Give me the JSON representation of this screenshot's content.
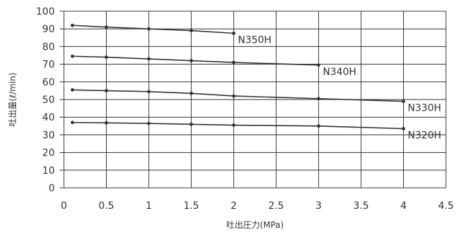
{
  "chart_data": {
    "type": "line",
    "xlabel": "吐出圧力(MPa)",
    "ylabel": "吐出量(ℓ/min)",
    "xlim": [
      0,
      4.5
    ],
    "ylim": [
      0,
      100
    ],
    "x_ticks": [
      "0",
      "0.5",
      "1",
      "1.5",
      "2",
      "2.5",
      "3",
      "3.5",
      "4",
      "4.5"
    ],
    "y_ticks": [
      "0",
      "10",
      "20",
      "30",
      "40",
      "50",
      "60",
      "70",
      "80",
      "90",
      "100"
    ],
    "grid": true,
    "legend": "inline labels at line ends",
    "series": [
      {
        "name": "N350H",
        "x": [
          0.1,
          0.5,
          1,
          1.5,
          2
        ],
        "y": [
          92,
          91,
          90,
          89,
          87.5
        ]
      },
      {
        "name": "N340H",
        "x": [
          0.1,
          0.5,
          1,
          1.5,
          2,
          3
        ],
        "y": [
          74.5,
          74,
          73,
          72,
          71,
          69.5
        ]
      },
      {
        "name": "N330H",
        "x": [
          0.1,
          0.5,
          1,
          1.5,
          2,
          3,
          4
        ],
        "y": [
          55.5,
          55,
          54.5,
          53.5,
          52,
          50.5,
          49
        ]
      },
      {
        "name": "N320H",
        "x": [
          0.1,
          0.5,
          1,
          1.5,
          2,
          3,
          4
        ],
        "y": [
          37,
          36.8,
          36.5,
          36,
          35.5,
          35,
          33.5
        ]
      }
    ],
    "colors": {
      "line": "#333333",
      "grid": "#333333",
      "text": "#333333"
    }
  }
}
